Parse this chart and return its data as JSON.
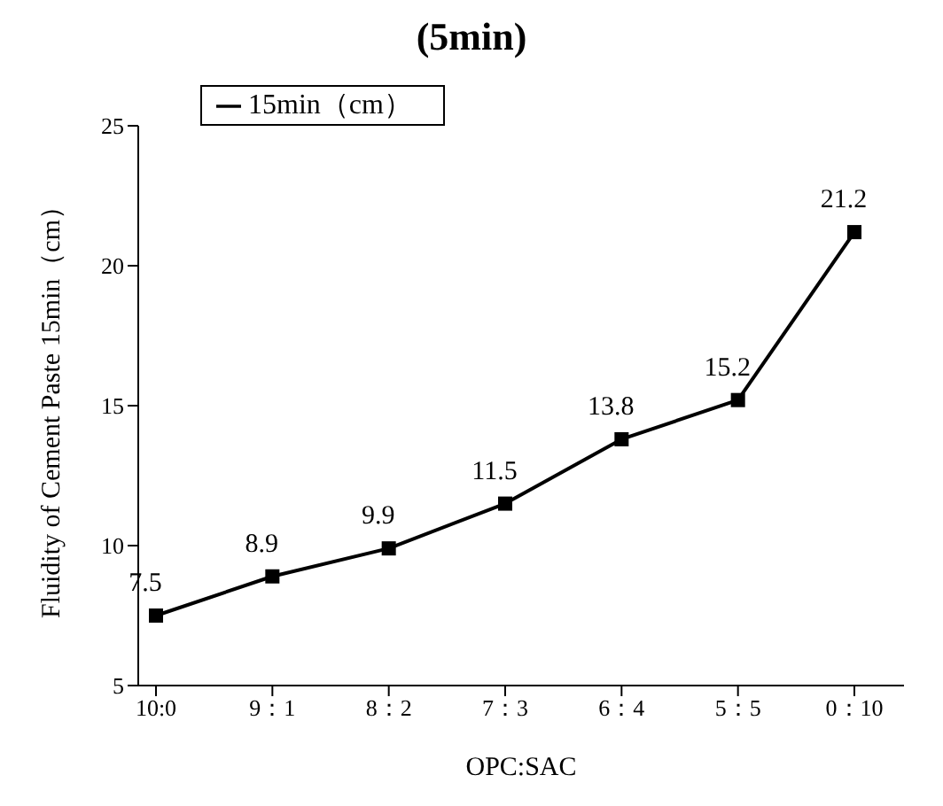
{
  "chart_data": {
    "type": "line",
    "title": "(5min)",
    "xlabel": "OPC:SAC",
    "ylabel": "Fluidity of Cement Paste 15min（cm）",
    "categories": [
      "10:0",
      "9：1",
      "8：2",
      "7：3",
      "6：4",
      "5：5",
      "0：10"
    ],
    "series": [
      {
        "name": "15min（cm）",
        "color": "#000000",
        "values": [
          7.5,
          8.9,
          9.9,
          11.5,
          13.8,
          15.2,
          21.2
        ]
      }
    ],
    "ylim": [
      5,
      25
    ],
    "yticks": [
      5,
      10,
      15,
      20,
      25
    ],
    "grid": false,
    "legend": "top left",
    "marker": "square",
    "line_style": "solid",
    "data_labels": true
  }
}
